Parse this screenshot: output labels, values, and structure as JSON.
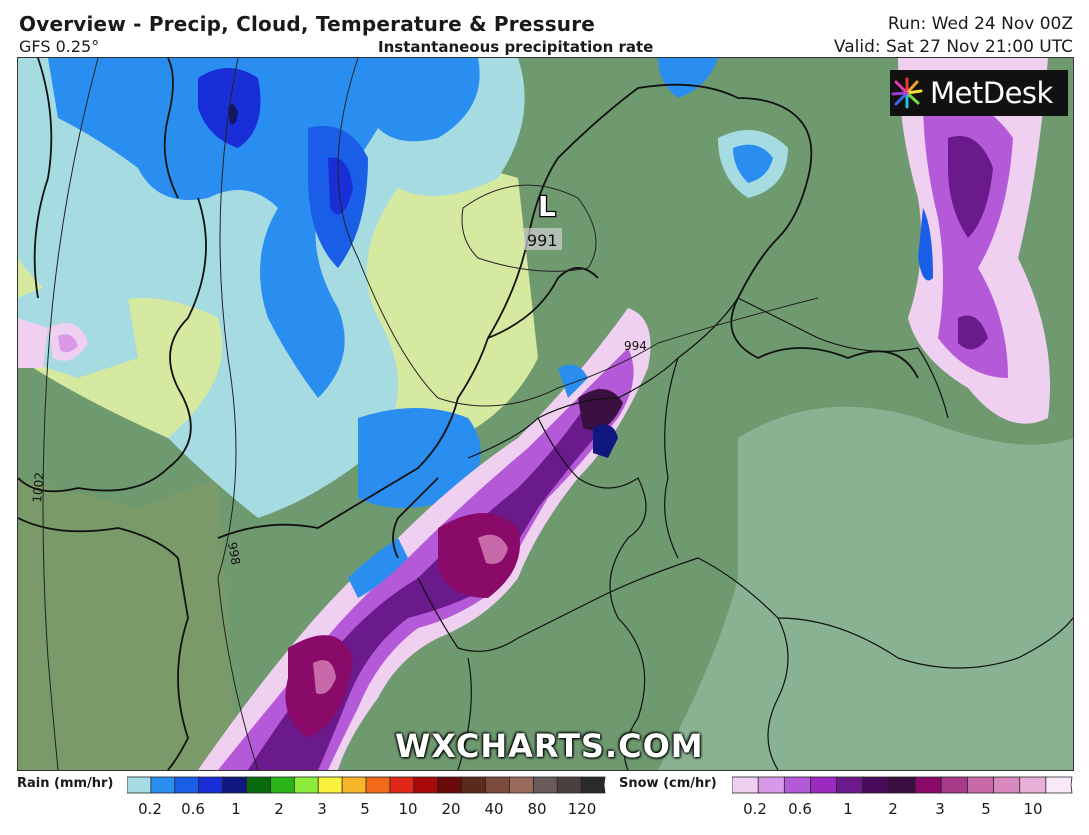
{
  "header": {
    "title": "Overview - Precip, Cloud, Temperature & Pressure",
    "model": "GFS 0.25°",
    "subtitle": "Instantaneous precipitation rate",
    "run": "Run: Wed 24 Nov 00Z",
    "valid": "Valid: Sat 27 Nov 21:00 UTC"
  },
  "map": {
    "low_marker": "L",
    "low_pressure": "991",
    "isobar_labels": [
      "994",
      "998",
      "1002"
    ],
    "watermark": "WXCHARTS.COM",
    "brand": "MetDesk"
  },
  "legend": {
    "rain": {
      "label": "Rain (mm/hr)",
      "ticks": [
        "0.2",
        "0.6",
        "1",
        "2",
        "3",
        "5",
        "10",
        "20",
        "40",
        "80",
        "120"
      ],
      "colors": [
        "#a8dce4",
        "#2a8ef0",
        "#1a5ee8",
        "#1a2ed8",
        "#101880",
        "#0a6a10",
        "#2ab41a",
        "#8cee3a",
        "#f8f03a",
        "#f8b42a",
        "#f46a1a",
        "#e0281a",
        "#a80a0a",
        "#6a0a0a",
        "#5a2a1a",
        "#7a4a3a",
        "#9a6a5a",
        "#6a5a5a",
        "#4a4040",
        "#2a2a2a"
      ]
    },
    "snow": {
      "label": "Snow (cm/hr)",
      "ticks": [
        "0.2",
        "0.6",
        "1",
        "2",
        "3",
        "5",
        "10"
      ],
      "colors": [
        "#f0d0f0",
        "#d89ae8",
        "#b45ad8",
        "#9a2ac0",
        "#6a1a8a",
        "#4a0a5a",
        "#3a1040",
        "#8a0a6a",
        "#a83a8a",
        "#c86aaa",
        "#d88ac0",
        "#e8b0d8",
        "#f8e8f8"
      ]
    }
  }
}
